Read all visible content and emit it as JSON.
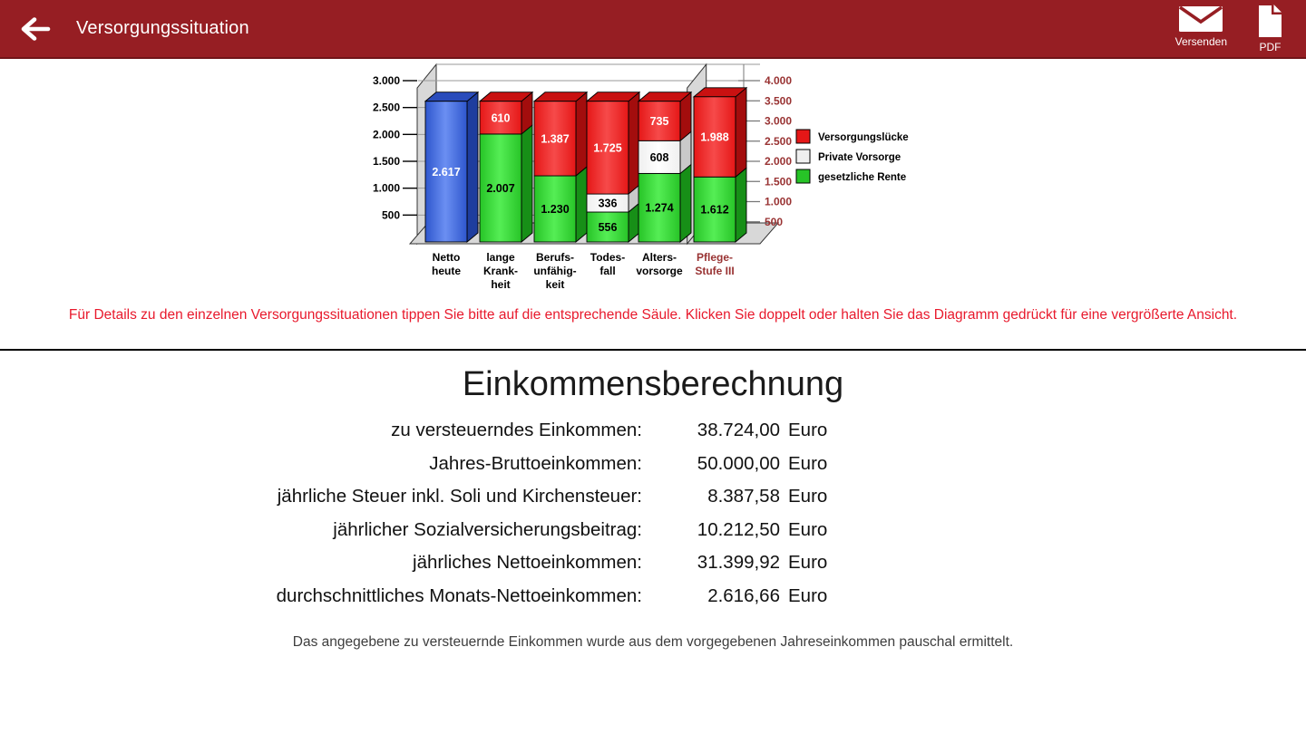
{
  "header": {
    "title": "Versorgungssituation",
    "bg_color": "#961e23",
    "actions": [
      {
        "label": "Versenden",
        "icon": "envelope-icon"
      },
      {
        "label": "PDF",
        "icon": "pdf-document-icon"
      }
    ]
  },
  "chart_data": {
    "type": "bar",
    "stacked": true,
    "unit": "Euro (monatlich)",
    "categories": [
      [
        "Netto",
        "heute"
      ],
      [
        "lange",
        "Krank-",
        "heit"
      ],
      [
        "Berufs-",
        "unfähig-",
        "keit"
      ],
      [
        "Todes-",
        "fall"
      ],
      [
        "Alters-",
        "vorsorge"
      ],
      [
        "Pflege-",
        "Stufe III"
      ]
    ],
    "category_colors": [
      "#000000",
      "#000000",
      "#000000",
      "#000000",
      "#000000",
      "#993333"
    ],
    "left_axis": {
      "range": [
        0,
        3000
      ],
      "ticks": [
        500,
        1000,
        1500,
        2000,
        2500,
        3000
      ],
      "tick_labels": [
        "500",
        "1.000",
        "1.500",
        "2.000",
        "2.500",
        "3.000"
      ],
      "color": "#000000"
    },
    "right_axis": {
      "range": [
        0,
        4000
      ],
      "ticks": [
        500,
        1000,
        1500,
        2000,
        2500,
        3000,
        3500,
        4000
      ],
      "tick_labels": [
        "500",
        "1.000",
        "1.500",
        "2.000",
        "2.500",
        "3.000",
        "3.500",
        "4.000"
      ],
      "color": "#993333"
    },
    "legend": [
      {
        "label": "Versorgungslücke",
        "color_key": "red"
      },
      {
        "label": "Private Vorsorge",
        "color_key": "white"
      },
      {
        "label": "gesetzliche Rente",
        "color_key": "green"
      }
    ],
    "bars": [
      {
        "name": "Netto heute",
        "axis": "left",
        "segments": [
          {
            "series": "Netto heute",
            "value": 2617,
            "label": "2.617",
            "color_key": "blue",
            "label_color": "#ffffff"
          }
        ]
      },
      {
        "name": "lange Krankheit",
        "axis": "left",
        "segments": [
          {
            "series": "gesetzliche Rente",
            "value": 2007,
            "label": "2.007",
            "color_key": "green",
            "label_color": "#000000"
          },
          {
            "series": "Versorgungslücke",
            "value": 610,
            "label": "610",
            "color_key": "red",
            "label_color": "#ffffff"
          }
        ]
      },
      {
        "name": "Berufsunfähigkeit",
        "axis": "left",
        "segments": [
          {
            "series": "gesetzliche Rente",
            "value": 1230,
            "label": "1.230",
            "color_key": "green",
            "label_color": "#000000"
          },
          {
            "series": "Versorgungslücke",
            "value": 1387,
            "label": "1.387",
            "color_key": "red",
            "label_color": "#ffffff"
          }
        ]
      },
      {
        "name": "Todesfall",
        "axis": "left",
        "segments": [
          {
            "series": "gesetzliche Rente",
            "value": 556,
            "label": "556",
            "color_key": "green",
            "label_color": "#000000"
          },
          {
            "series": "Private Vorsorge",
            "value": 336,
            "label": "336",
            "color_key": "white",
            "label_color": "#000000"
          },
          {
            "series": "Versorgungslücke",
            "value": 1725,
            "label": "1.725",
            "color_key": "red",
            "label_color": "#ffffff"
          }
        ]
      },
      {
        "name": "Altersvorsorge",
        "axis": "left",
        "segments": [
          {
            "series": "gesetzliche Rente",
            "value": 1274,
            "label": "1.274",
            "color_key": "green",
            "label_color": "#000000"
          },
          {
            "series": "Private Vorsorge",
            "value": 608,
            "label": "608",
            "color_key": "white",
            "label_color": "#000000"
          },
          {
            "series": "Versorgungslücke",
            "value": 735,
            "label": "735",
            "color_key": "red",
            "label_color": "#ffffff"
          }
        ]
      },
      {
        "name": "Pflege-Stufe III",
        "axis": "right",
        "segments": [
          {
            "series": "gesetzliche Rente",
            "value": 1612,
            "label": "1.612",
            "color_key": "green",
            "label_color": "#000000"
          },
          {
            "series": "Versorgungslücke",
            "value": 1988,
            "label": "1.988",
            "color_key": "red",
            "label_color": "#ffffff"
          }
        ]
      }
    ],
    "colors": {
      "blue": {
        "front": "#2e56cd",
        "light": "#6b8ff2",
        "side": "#1e3d9e",
        "top": "#2a4cbb"
      },
      "green": {
        "front": "#27c427",
        "light": "#55ee55",
        "side": "#178f17",
        "top": "#1fae1f"
      },
      "red": {
        "front": "#e51717",
        "light": "#f64a4a",
        "side": "#a30d0d",
        "top": "#c91111"
      },
      "white": {
        "front": "#efefef",
        "light": "#ffffff",
        "side": "#c9c9c9",
        "top": "#e2e2e2"
      }
    }
  },
  "instruction": "Für Details zu den einzelnen Versorgungssituationen tippen Sie bitte auf die entsprechende Säule. Klicken Sie doppelt oder halten Sie das Diagramm gedrückt für eine vergrößerte Ansicht.",
  "income": {
    "title": "Einkommensberechnung",
    "rows": [
      {
        "label": "zu versteuerndes Einkommen:",
        "value": "38.724,00",
        "unit": "Euro"
      },
      {
        "label": "Jahres-Bruttoeinkommen:",
        "value": "50.000,00",
        "unit": "Euro"
      },
      {
        "label": "jährliche Steuer inkl. Soli und Kirchensteuer:",
        "value": "8.387,58",
        "unit": "Euro"
      },
      {
        "label": "jährlicher Sozialversicherungsbeitrag:",
        "value": "10.212,50",
        "unit": "Euro"
      },
      {
        "label": "jährliches Nettoeinkommen:",
        "value": "31.399,92",
        "unit": "Euro"
      },
      {
        "label": "durchschnittliches Monats-Nettoeinkommen:",
        "value": "2.616,66",
        "unit": "Euro"
      }
    ],
    "note": "Das angegebene zu versteuernde Einkommen wurde aus dem vorgegebenen Jahreseinkommen pauschal ermittelt."
  }
}
